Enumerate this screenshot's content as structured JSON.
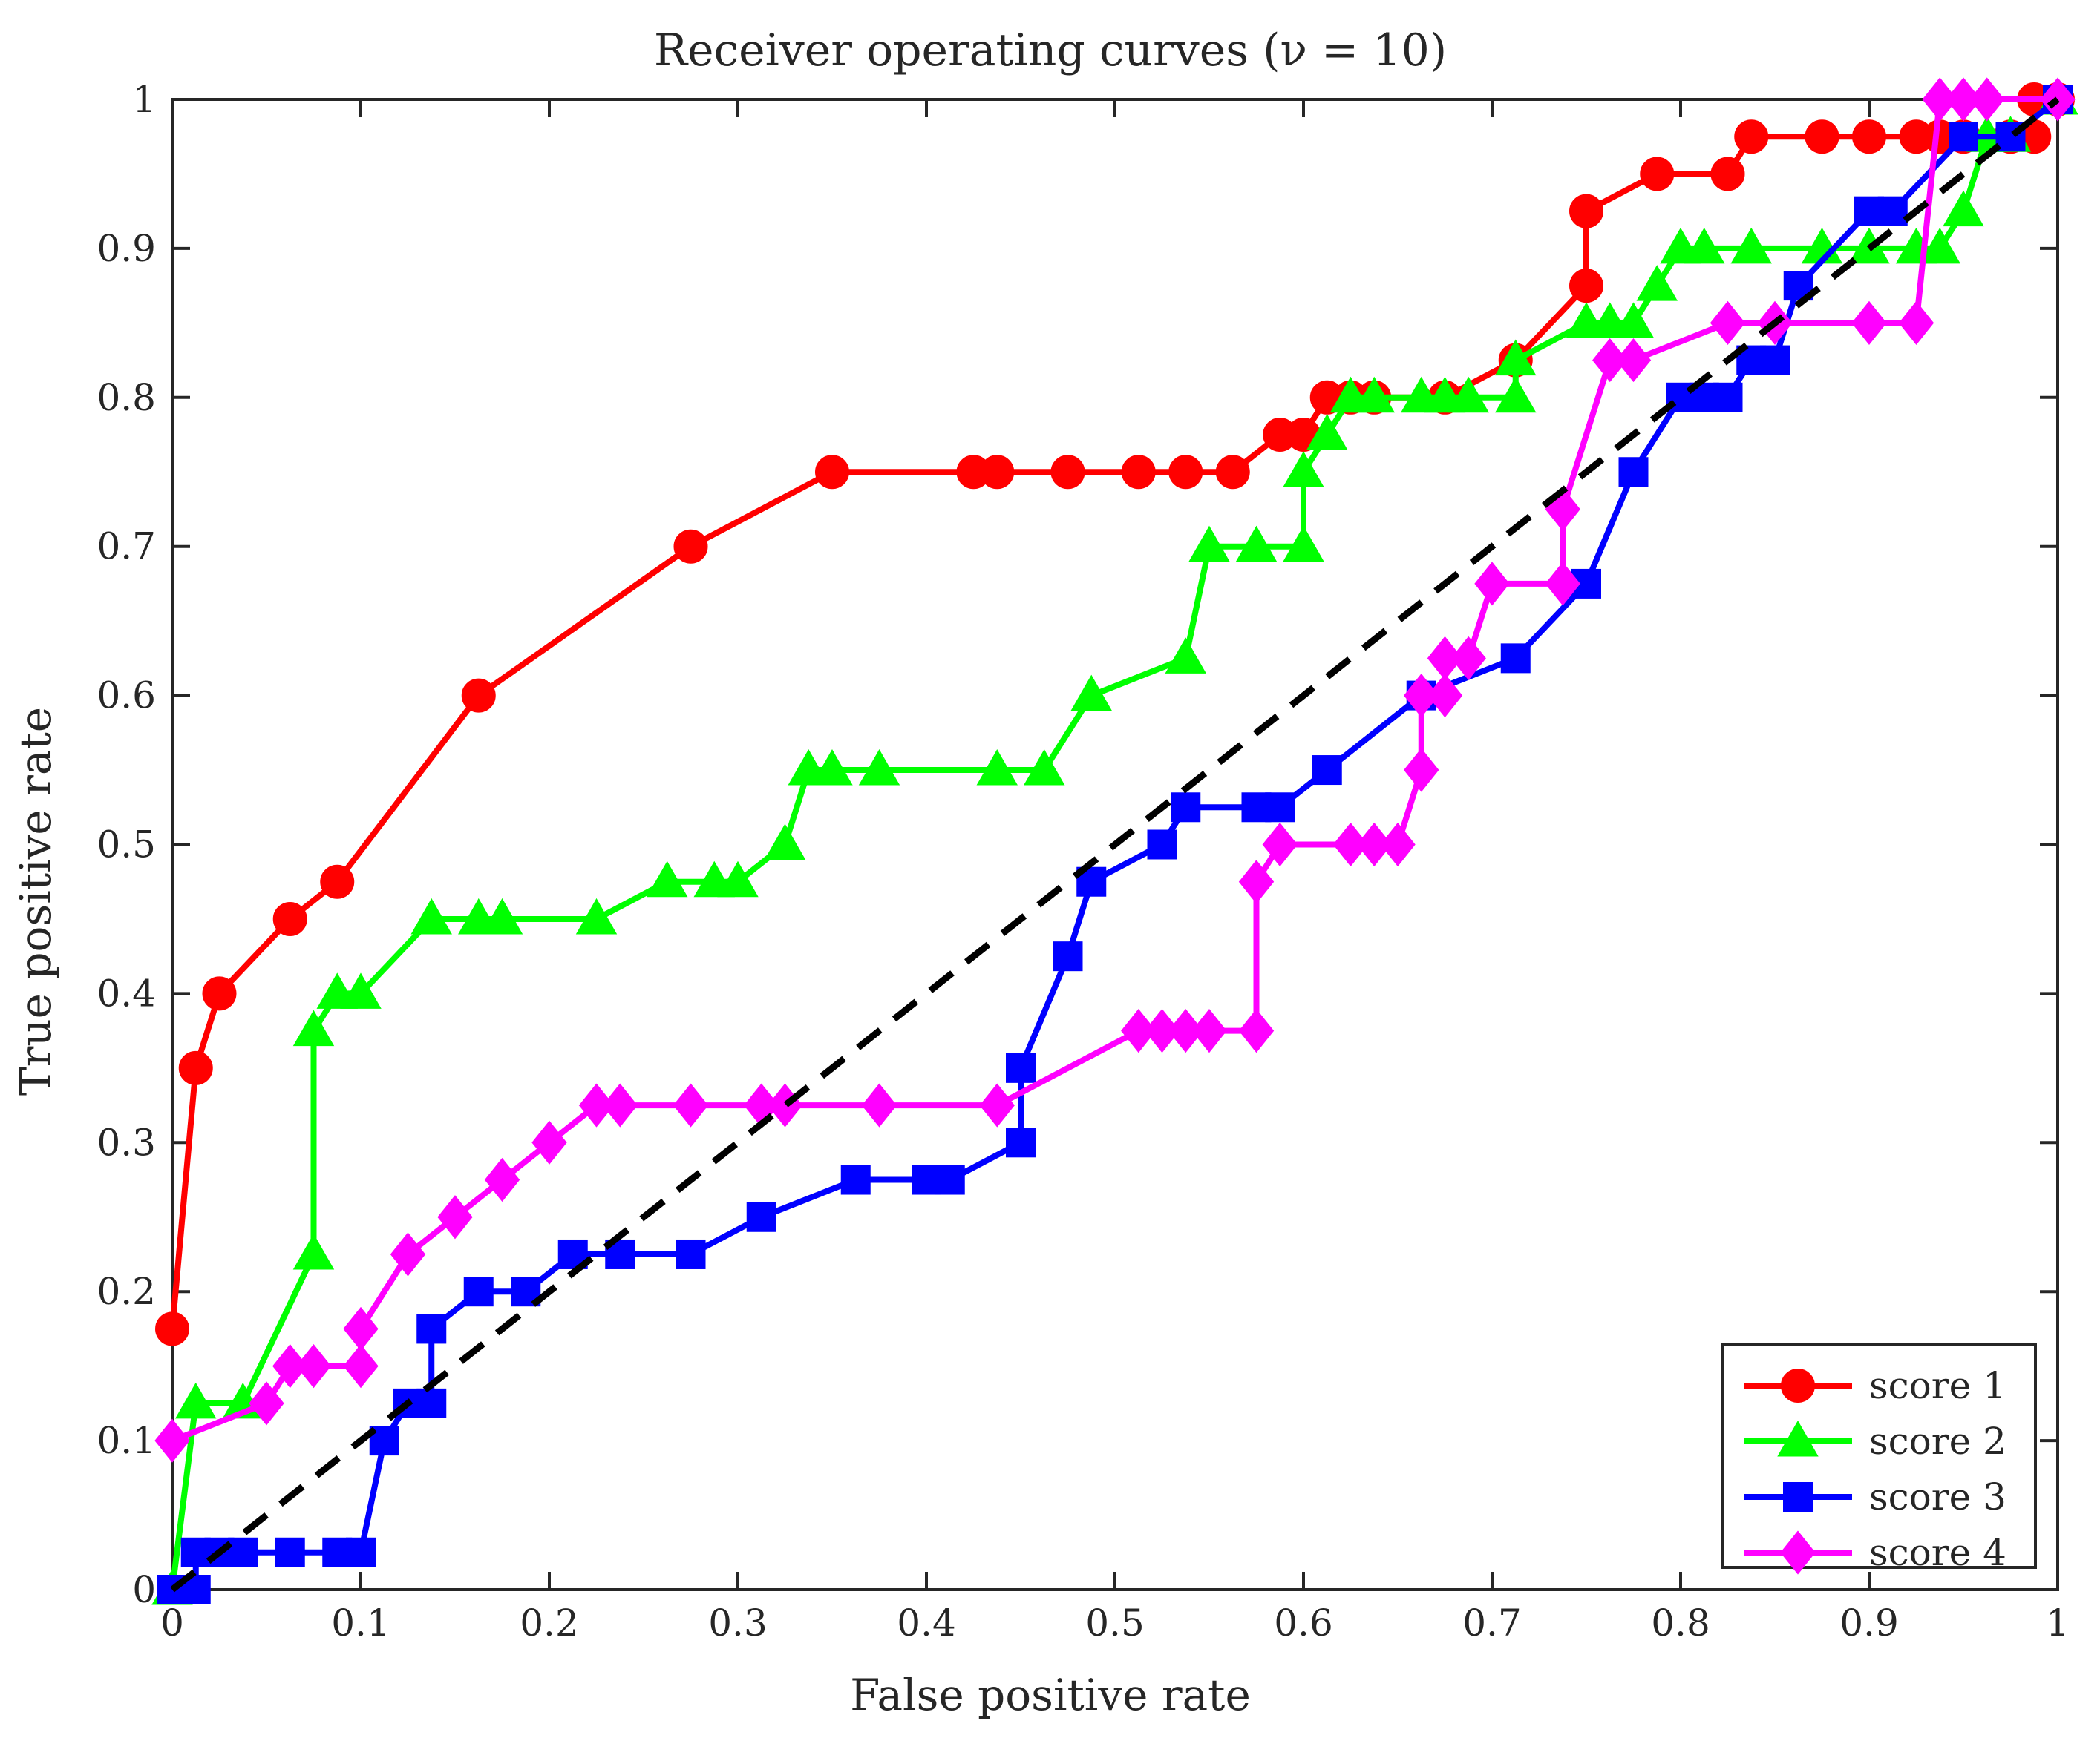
{
  "chart_data": {
    "type": "line",
    "title": "Receiver operating curves (ν = 10)",
    "xlabel": "False positive rate",
    "ylabel": "True positive rate",
    "xlim": [
      0,
      1
    ],
    "ylim": [
      0,
      1
    ],
    "xticks": [
      0,
      0.1,
      0.2,
      0.3,
      0.4,
      0.5,
      0.6,
      0.7,
      0.8,
      0.9,
      1
    ],
    "yticks": [
      0,
      0.1,
      0.2,
      0.3,
      0.4,
      0.5,
      0.6,
      0.7,
      0.8,
      0.9,
      1
    ],
    "xtick_labels": [
      "0",
      "0.1",
      "0.2",
      "0.3",
      "0.4",
      "0.5",
      "0.6",
      "0.7",
      "0.8",
      "0.9",
      "1"
    ],
    "ytick_labels": [
      "0",
      "0.1",
      "0.2",
      "0.3",
      "0.4",
      "0.5",
      "0.6",
      "0.7",
      "0.8",
      "0.9",
      "1"
    ],
    "grid": false,
    "legend_position": "bottom-right",
    "reference_line": {
      "x": [
        0,
        1
      ],
      "y": [
        0,
        1
      ],
      "color": "#000000",
      "style": "dashed"
    },
    "series": [
      {
        "name": "score 1",
        "color": "#ff0000",
        "marker": "circle",
        "x": [
          0,
          0.0125,
          0.025,
          0.0625,
          0.0875,
          0.1625,
          0.275,
          0.35,
          0.425,
          0.4375,
          0.475,
          0.5125,
          0.5375,
          0.5625,
          0.5875,
          0.6,
          0.6125,
          0.625,
          0.6375,
          0.675,
          0.7125,
          0.75,
          0.75,
          0.7875,
          0.825,
          0.8375,
          0.875,
          0.9,
          0.925,
          0.9375,
          0.95,
          0.975,
          0.9875,
          0.9875,
          1
        ],
        "y": [
          0.175,
          0.35,
          0.4,
          0.45,
          0.475,
          0.6,
          0.7,
          0.75,
          0.75,
          0.75,
          0.75,
          0.75,
          0.75,
          0.75,
          0.775,
          0.775,
          0.8,
          0.8,
          0.8,
          0.8,
          0.825,
          0.875,
          0.925,
          0.95,
          0.95,
          0.975,
          0.975,
          0.975,
          0.975,
          0.975,
          0.975,
          0.975,
          0.975,
          1,
          1
        ]
      },
      {
        "name": "score 2",
        "color": "#00ff00",
        "marker": "triangle",
        "x": [
          0,
          0.0125,
          0.0375,
          0.075,
          0.075,
          0.0875,
          0.1,
          0.1375,
          0.1625,
          0.175,
          0.225,
          0.2625,
          0.2875,
          0.3,
          0.325,
          0.3375,
          0.35,
          0.375,
          0.4375,
          0.4625,
          0.4875,
          0.5375,
          0.55,
          0.575,
          0.6,
          0.6,
          0.6125,
          0.625,
          0.6375,
          0.6625,
          0.675,
          0.6875,
          0.7125,
          0.7125,
          0.75,
          0.7625,
          0.775,
          0.7875,
          0.8,
          0.8125,
          0.8375,
          0.875,
          0.9,
          0.925,
          0.9375,
          0.95,
          0.9625,
          0.975,
          1
        ],
        "y": [
          0,
          0.125,
          0.125,
          0.225,
          0.375,
          0.4,
          0.4,
          0.45,
          0.45,
          0.45,
          0.45,
          0.475,
          0.475,
          0.475,
          0.5,
          0.55,
          0.55,
          0.55,
          0.55,
          0.55,
          0.6,
          0.625,
          0.7,
          0.7,
          0.7,
          0.75,
          0.775,
          0.8,
          0.8,
          0.8,
          0.8,
          0.8,
          0.8,
          0.825,
          0.85,
          0.85,
          0.85,
          0.875,
          0.9,
          0.9,
          0.9,
          0.9,
          0.9,
          0.9,
          0.9,
          0.925,
          0.975,
          0.975,
          1
        ]
      },
      {
        "name": "score 3",
        "color": "#0000ff",
        "marker": "square",
        "x": [
          0,
          0.0125,
          0.0125,
          0.025,
          0.0375,
          0.0625,
          0.0875,
          0.1,
          0.1125,
          0.125,
          0.1375,
          0.1375,
          0.1625,
          0.1875,
          0.2125,
          0.2375,
          0.275,
          0.3125,
          0.3625,
          0.4,
          0.4125,
          0.45,
          0.45,
          0.475,
          0.4875,
          0.525,
          0.5375,
          0.575,
          0.5875,
          0.6125,
          0.6625,
          0.7125,
          0.75,
          0.775,
          0.8,
          0.8125,
          0.825,
          0.8375,
          0.85,
          0.8625,
          0.9,
          0.9125,
          0.95,
          0.975,
          1
        ],
        "y": [
          0,
          0,
          0.025,
          0.025,
          0.025,
          0.025,
          0.025,
          0.025,
          0.1,
          0.125,
          0.125,
          0.175,
          0.2,
          0.2,
          0.225,
          0.225,
          0.225,
          0.25,
          0.275,
          0.275,
          0.275,
          0.3,
          0.35,
          0.425,
          0.475,
          0.5,
          0.525,
          0.525,
          0.525,
          0.55,
          0.6,
          0.625,
          0.675,
          0.75,
          0.8,
          0.8,
          0.8,
          0.825,
          0.825,
          0.875,
          0.925,
          0.925,
          0.975,
          0.975,
          1
        ]
      },
      {
        "name": "score 4",
        "color": "#ff00ff",
        "marker": "diamond",
        "x": [
          0,
          0.05,
          0.0625,
          0.075,
          0.1,
          0.1,
          0.125,
          0.15,
          0.175,
          0.2,
          0.225,
          0.2375,
          0.275,
          0.3125,
          0.325,
          0.375,
          0.4375,
          0.5125,
          0.525,
          0.5375,
          0.55,
          0.575,
          0.575,
          0.5875,
          0.625,
          0.6375,
          0.65,
          0.6625,
          0.6625,
          0.675,
          0.675,
          0.6875,
          0.7,
          0.7375,
          0.7375,
          0.7625,
          0.775,
          0.825,
          0.85,
          0.9,
          0.925,
          0.9375,
          0.95,
          0.9625,
          1
        ],
        "y": [
          0.1,
          0.125,
          0.15,
          0.15,
          0.15,
          0.175,
          0.225,
          0.25,
          0.275,
          0.3,
          0.325,
          0.325,
          0.325,
          0.325,
          0.325,
          0.325,
          0.325,
          0.375,
          0.375,
          0.375,
          0.375,
          0.375,
          0.475,
          0.5,
          0.5,
          0.5,
          0.5,
          0.55,
          0.6,
          0.6,
          0.625,
          0.625,
          0.675,
          0.675,
          0.725,
          0.825,
          0.825,
          0.85,
          0.85,
          0.85,
          0.85,
          1,
          1,
          1,
          1
        ]
      }
    ]
  }
}
